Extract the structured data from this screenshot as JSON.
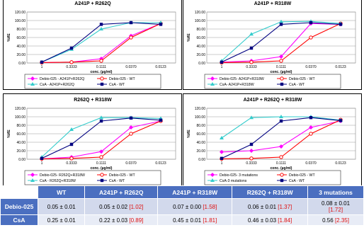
{
  "common": {
    "ylabel": "%ИЕ",
    "xlabel": "conc. (µg/ml)",
    "xticks": [
      "1",
      "0.3333",
      "0.1111",
      "0.0370",
      "0.0123"
    ],
    "yticks": [
      "0.00",
      "20.00",
      "40.00",
      "60.00",
      "80.00",
      "100.00",
      "120.00"
    ]
  },
  "chart_data": [
    {
      "type": "line",
      "title": "A241P + R262Q",
      "categories": [
        "1",
        "0.3333",
        "0.1111",
        "0.0370",
        "0.0123"
      ],
      "ylim": [
        0,
        120
      ],
      "series": [
        {
          "name": "Debio-025 - A241P+R262Q",
          "color": "#ff00ff",
          "marker": "diamond",
          "values": [
            1,
            2,
            10,
            64,
            93
          ]
        },
        {
          "name": "Debio-025 - WT",
          "color": "#ff0000",
          "marker": "circle",
          "values": [
            1,
            2,
            5,
            60,
            93
          ]
        },
        {
          "name": "CsA - A241P+R262Q",
          "color": "#33cccc",
          "marker": "triangle",
          "values": [
            2,
            32,
            80,
            95,
            95
          ]
        },
        {
          "name": "CsA - WT",
          "color": "#000080",
          "marker": "square",
          "values": [
            2,
            35,
            91,
            95,
            91
          ]
        }
      ]
    },
    {
      "type": "line",
      "title": "A241P + R318W",
      "categories": [
        "1",
        "0.3333",
        "0.1111",
        "0.0370",
        "0.0123"
      ],
      "ylim": [
        0,
        120
      ],
      "series": [
        {
          "name": "Debio-025- A241P+R318W",
          "color": "#ff00ff",
          "marker": "diamond",
          "values": [
            2,
            5,
            15,
            93,
            91
          ]
        },
        {
          "name": "Debio-025 - WT",
          "color": "#ff0000",
          "marker": "circle",
          "values": [
            1,
            2,
            5,
            60,
            93
          ]
        },
        {
          "name": "CsA- A241P+R318W",
          "color": "#33cccc",
          "marker": "triangle",
          "values": [
            5,
            68,
            97,
            98,
            93
          ]
        },
        {
          "name": "CsA - WT",
          "color": "#000080",
          "marker": "square",
          "values": [
            2,
            35,
            91,
            95,
            91
          ]
        }
      ]
    },
    {
      "type": "line",
      "title": "R262Q + R318W",
      "categories": [
        "1",
        "0.3333",
        "0.1111",
        "0.0370",
        "0.0123"
      ],
      "ylim": [
        0,
        120
      ],
      "series": [
        {
          "name": "Debio-025- R262Q+R318W",
          "color": "#ff00ff",
          "marker": "diamond",
          "values": [
            1,
            5,
            18,
            75,
            90
          ]
        },
        {
          "name": "Debio-025 - WT",
          "color": "#ff0000",
          "marker": "circle",
          "values": [
            1,
            2,
            5,
            60,
            90
          ]
        },
        {
          "name": "CsA - R262Q+R318W",
          "color": "#33cccc",
          "marker": "triangle",
          "values": [
            5,
            70,
            98,
            98,
            96
          ]
        },
        {
          "name": "CsA - WT",
          "color": "#000080",
          "marker": "square",
          "values": [
            2,
            35,
            90,
            97,
            92
          ]
        }
      ]
    },
    {
      "type": "line",
      "title": "A241P + R262Q + R318W",
      "categories": [
        "1",
        "0.3333",
        "0.1111",
        "0.0370",
        "0.0123"
      ],
      "ylim": [
        0,
        120
      ],
      "series": [
        {
          "name": "Debio-025- 3 mutations",
          "color": "#ff00ff",
          "marker": "diamond",
          "values": [
            17,
            20,
            30,
            75,
            90
          ]
        },
        {
          "name": "Debio-025 - WT",
          "color": "#ff0000",
          "marker": "circle",
          "values": [
            1,
            2,
            5,
            60,
            93
          ]
        },
        {
          "name": "CsA-3 mutations",
          "color": "#33cccc",
          "marker": "triangle",
          "values": [
            50,
            98,
            100,
            100,
            92
          ]
        },
        {
          "name": "CsA - WT",
          "color": "#000080",
          "marker": "square",
          "values": [
            2,
            35,
            90,
            98,
            91
          ]
        }
      ]
    }
  ],
  "table": {
    "headers": [
      "",
      "WT",
      "A241P + R262Q",
      "A241P + R318W",
      "R262Q + R318W",
      "3 mutations"
    ],
    "rows": [
      {
        "label": "Debio-025",
        "cells": [
          {
            "value": "0.05 ± 0.01",
            "fold": ""
          },
          {
            "value": "0.05 ± 0.02",
            "fold": "[1.02]"
          },
          {
            "value": "0.07 ± 0.00",
            "fold": "[1.58]"
          },
          {
            "value": "0.06 ± 0.01",
            "fold": "[1.37]"
          },
          {
            "value": "0.08 ± 0.01",
            "fold": "[1.72]"
          }
        ]
      },
      {
        "label": "CsA",
        "cells": [
          {
            "value": "0.25 ± 0.01",
            "fold": ""
          },
          {
            "value": "0.22 ± 0.03",
            "fold": "[0.89]"
          },
          {
            "value": "0.45 ± 0.01",
            "fold": "[1.81]"
          },
          {
            "value": "0.46 ± 0.03",
            "fold": "[1.84]"
          },
          {
            "value": "0.56",
            "fold": "[2.35]"
          }
        ]
      }
    ]
  }
}
